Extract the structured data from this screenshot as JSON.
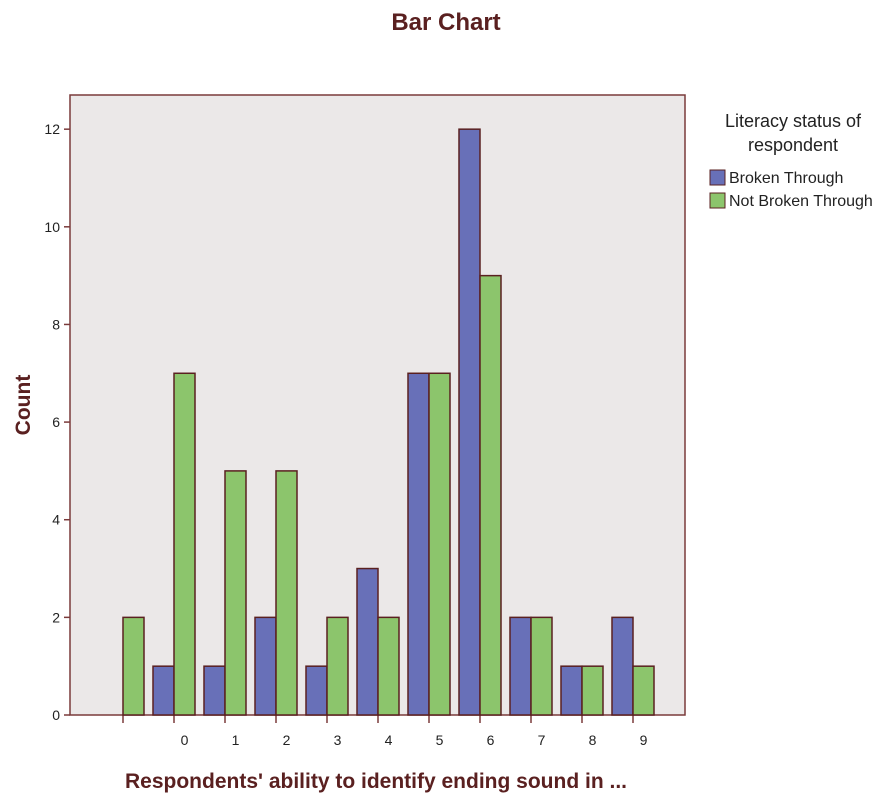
{
  "chart_data": {
    "type": "bar",
    "title": "Bar Chart",
    "xlabel": "Respondents' ability to identify ending sound in ...",
    "ylabel": "Count",
    "categories": [
      "",
      "0",
      "1",
      "2",
      "3",
      "4",
      "5",
      "6",
      "7",
      "8",
      "9"
    ],
    "series": [
      {
        "name": "Broken Through",
        "color": "#6870b8",
        "values": [
          null,
          1,
          1,
          2,
          1,
          3,
          7,
          12,
          2,
          1,
          2
        ]
      },
      {
        "name": "Not Broken Through",
        "color": "#8cc56c",
        "values": [
          2,
          7,
          5,
          5,
          2,
          2,
          7,
          9,
          2,
          1,
          1
        ]
      }
    ],
    "ylim": [
      0,
      12.7
    ],
    "yticks": [
      0,
      2,
      4,
      6,
      8,
      10,
      12
    ],
    "legend": {
      "title": "Literacy status of respondent",
      "placement": "right"
    },
    "colors": {
      "plot_background": "#ebe8e8",
      "axis_frame": "#7a3a3a",
      "bar_outline": "#5a2020",
      "title_text": "#5a2020"
    },
    "grid": false
  }
}
